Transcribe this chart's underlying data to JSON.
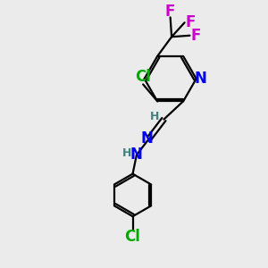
{
  "bg_color": "#ebebeb",
  "atom_colors": {
    "C": "#000000",
    "N": "#0000ee",
    "Cl_green": "#00aa00",
    "F": "#cc00cc",
    "H": "#408080"
  },
  "bond_color": "#000000",
  "figsize": [
    3.0,
    3.0
  ],
  "dpi": 100
}
